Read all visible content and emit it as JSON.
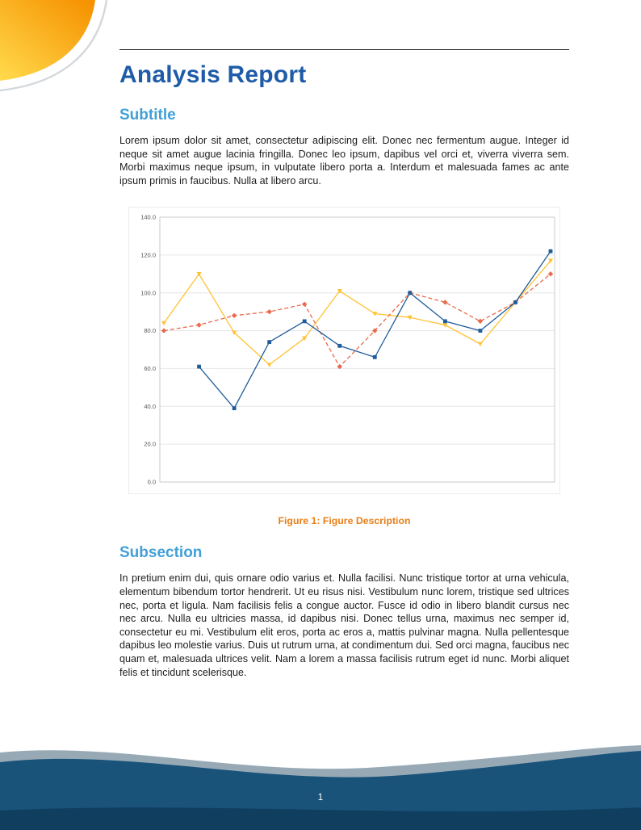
{
  "theme": {
    "page_bg": "#FFFFFF",
    "title_blue": "#1E5CA8",
    "heading_blue": "#41A0D8",
    "caption_orange": "#E87E17",
    "text_color": "#1D1D1D",
    "rule_color": "#222222",
    "footer_navy": "#19537A",
    "footer_dark": "#0F3E5F",
    "wave_gray": "#98A9B6",
    "corner_yellow": "#FFDB4D",
    "corner_orange": "#F69200"
  },
  "header": {
    "title": "Analysis Report"
  },
  "sections": [
    {
      "heading": "Subtitle",
      "body": "Lorem ipsum dolor sit amet, consectetur adipiscing elit. Donec nec fermentum augue. Integer id neque sit amet augue lacinia fringilla. Donec leo ipsum, dapibus vel orci et, viverra viverra sem. Morbi maximus neque ipsum, in vulputate libero porta a. Interdum et malesuada fames ac ante ipsum primis in faucibus. Nulla at libero arcu."
    },
    {
      "heading": "Subsection",
      "body": "In pretium enim dui, quis ornare odio varius et. Nulla facilisi. Nunc tristique tortor at urna vehicula, elementum bibendum tortor hendrerit. Ut eu risus nisi. Vestibulum nunc lorem, tristique sed ultrices nec, porta et ligula. Nam facilisis felis a congue auctor. Fusce id odio in libero blandit cursus nec nec arcu. Nulla eu ultricies massa, id dapibus nisi. Donec tellus urna, maximus nec semper id, consectetur eu mi. Vestibulum elit eros, porta ac eros a, mattis pulvinar magna. Nulla pellentesque dapibus leo molestie varius. Duis ut rutrum urna, at condimentum dui. Sed orci magna, faucibus nec quam et, malesuada ultrices velit. Nam a lorem a massa facilisis rutrum eget id nunc. Morbi aliquet felis et tincidunt scelerisque."
    }
  ],
  "figure": {
    "caption_label": "Figure 1:",
    "caption_text": "Figure Description"
  },
  "footer": {
    "page_number": "1"
  },
  "chart_data": {
    "type": "line",
    "title": "",
    "xlabel": "",
    "ylabel": "",
    "x": [
      1,
      2,
      3,
      4,
      5,
      6,
      7,
      8,
      9,
      10,
      11,
      12
    ],
    "ylim": [
      0,
      140
    ],
    "yticks": [
      0,
      20,
      40,
      60,
      80,
      100,
      120,
      140
    ],
    "ytick_format": "one-decimal",
    "grid": "horizontal",
    "legend": "none",
    "series": [
      {
        "name": "series-yellow",
        "color": "#FFC233",
        "marker": "triangle-down",
        "dash": "solid",
        "values": [
          84,
          110,
          79,
          62,
          76,
          101,
          89,
          87,
          83,
          73,
          95,
          117
        ]
      },
      {
        "name": "series-red",
        "color": "#E96A4B",
        "marker": "diamond",
        "dash": "dashed",
        "values": [
          80,
          83,
          88,
          90,
          94,
          61,
          80,
          100,
          95,
          85,
          95,
          110
        ]
      },
      {
        "name": "series-blue",
        "color": "#1F5C99",
        "marker": "square",
        "dash": "solid",
        "values": [
          null,
          61,
          39,
          74,
          85,
          72,
          66,
          100,
          85,
          80,
          95,
          122
        ]
      }
    ]
  }
}
